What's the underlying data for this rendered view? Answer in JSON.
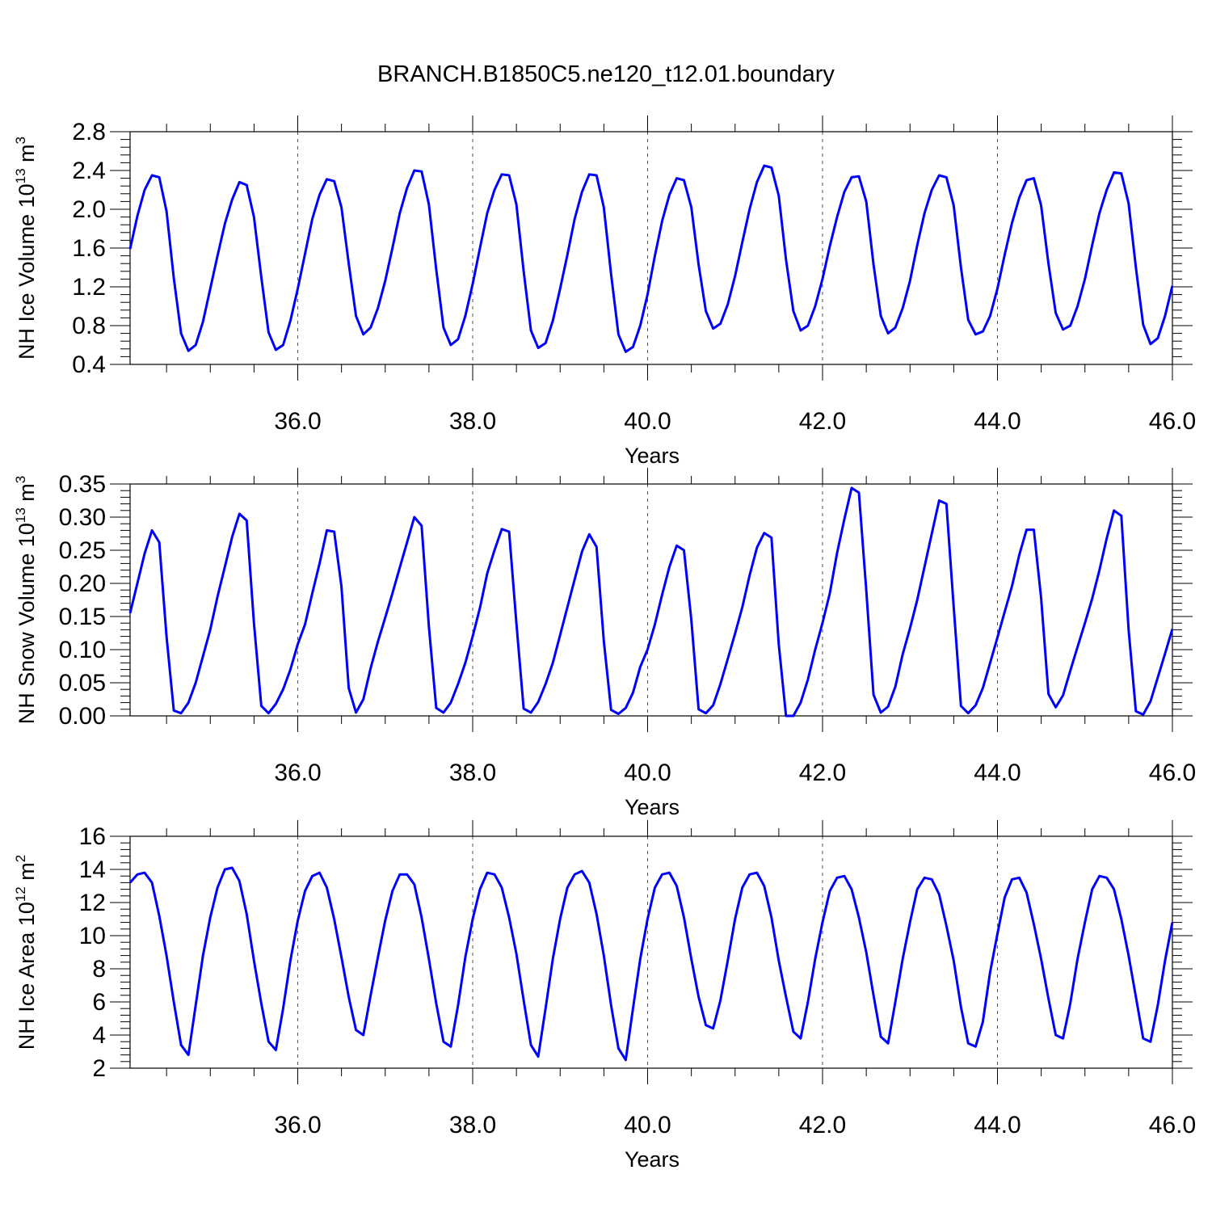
{
  "title": "BRANCH.B1850C5.ne120_t12.01.boundary",
  "chart_data": [
    {
      "type": "line",
      "xlabel": "Years",
      "ylabel": "NH Ice Volume 10^13 m^3",
      "ylabel_base": "NH Ice Volume 10",
      "ylabel_sup1": "13",
      "ylabel_mid": " m",
      "ylabel_sup2": "3",
      "xlim": [
        34.08,
        46.0
      ],
      "ylim": [
        0.4,
        2.8
      ],
      "xticks": [
        "36.0",
        "38.0",
        "40.0",
        "42.0",
        "44.0",
        "46.0"
      ],
      "yticks": [
        "0.4",
        "0.8",
        "1.2",
        "1.6",
        "2.0",
        "2.4",
        "2.8"
      ],
      "grid": "dashed vertical lines at major x ticks",
      "color": "#0000ff",
      "x_start": 34.083,
      "x_step": 0.08333,
      "values": [
        1.59,
        1.93,
        2.2,
        2.35,
        2.33,
        1.98,
        1.29,
        0.72,
        0.54,
        0.6,
        0.84,
        1.18,
        1.52,
        1.85,
        2.1,
        2.28,
        2.25,
        1.92,
        1.3,
        0.73,
        0.55,
        0.6,
        0.85,
        1.18,
        1.54,
        1.9,
        2.15,
        2.31,
        2.29,
        2.02,
        1.44,
        0.9,
        0.71,
        0.78,
        0.98,
        1.26,
        1.6,
        1.96,
        2.22,
        2.4,
        2.39,
        2.05,
        1.38,
        0.78,
        0.6,
        0.66,
        0.9,
        1.23,
        1.6,
        1.96,
        2.2,
        2.36,
        2.35,
        2.05,
        1.36,
        0.75,
        0.57,
        0.62,
        0.85,
        1.18,
        1.53,
        1.9,
        2.18,
        2.36,
        2.35,
        2.02,
        1.33,
        0.71,
        0.53,
        0.58,
        0.8,
        1.12,
        1.52,
        1.88,
        2.15,
        2.32,
        2.3,
        2.02,
        1.43,
        0.95,
        0.77,
        0.82,
        1.02,
        1.31,
        1.66,
        2.0,
        2.28,
        2.45,
        2.43,
        2.14,
        1.48,
        0.95,
        0.75,
        0.8,
        1.0,
        1.28,
        1.62,
        1.92,
        2.18,
        2.33,
        2.34,
        2.08,
        1.43,
        0.9,
        0.72,
        0.78,
        0.98,
        1.26,
        1.63,
        1.96,
        2.2,
        2.35,
        2.33,
        2.04,
        1.4,
        0.86,
        0.71,
        0.74,
        0.9,
        1.18,
        1.53,
        1.86,
        2.12,
        2.3,
        2.32,
        2.04,
        1.44,
        0.93,
        0.76,
        0.8,
        1.0,
        1.28,
        1.63,
        1.96,
        2.2,
        2.38,
        2.37,
        2.06,
        1.4,
        0.81,
        0.61,
        0.67,
        0.9,
        1.21
      ]
    },
    {
      "type": "line",
      "xlabel": "Years",
      "ylabel": "NH Snow Volume 10^13 m^3",
      "ylabel_base": "NH Snow Volume 10",
      "ylabel_sup1": "13",
      "ylabel_mid": " m",
      "ylabel_sup2": "3",
      "xlim": [
        34.08,
        46.0
      ],
      "ylim": [
        0.0,
        0.35
      ],
      "xticks": [
        "36.0",
        "38.0",
        "40.0",
        "42.0",
        "44.0",
        "46.0"
      ],
      "yticks": [
        "0.00",
        "0.05",
        "0.10",
        "0.15",
        "0.20",
        "0.25",
        "0.30",
        "0.35"
      ],
      "grid": "dashed vertical lines at major x ticks",
      "color": "#0000ff",
      "x_start": 34.083,
      "x_step": 0.08333,
      "values": [
        0.155,
        0.2,
        0.245,
        0.28,
        0.262,
        0.12,
        0.008,
        0.004,
        0.02,
        0.05,
        0.09,
        0.13,
        0.18,
        0.225,
        0.27,
        0.305,
        0.295,
        0.14,
        0.015,
        0.004,
        0.018,
        0.04,
        0.07,
        0.108,
        0.138,
        0.185,
        0.23,
        0.28,
        0.278,
        0.195,
        0.042,
        0.005,
        0.025,
        0.072,
        0.112,
        0.148,
        0.185,
        0.224,
        0.262,
        0.3,
        0.287,
        0.135,
        0.012,
        0.005,
        0.02,
        0.048,
        0.08,
        0.12,
        0.163,
        0.215,
        0.25,
        0.282,
        0.278,
        0.14,
        0.011,
        0.005,
        0.021,
        0.048,
        0.08,
        0.122,
        0.164,
        0.206,
        0.248,
        0.274,
        0.255,
        0.113,
        0.009,
        0.003,
        0.012,
        0.035,
        0.074,
        0.1,
        0.138,
        0.183,
        0.225,
        0.257,
        0.25,
        0.145,
        0.01,
        0.004,
        0.016,
        0.048,
        0.086,
        0.124,
        0.164,
        0.212,
        0.254,
        0.276,
        0.269,
        0.108,
        0.0,
        0.0,
        0.02,
        0.055,
        0.1,
        0.14,
        0.185,
        0.246,
        0.297,
        0.344,
        0.337,
        0.19,
        0.032,
        0.005,
        0.014,
        0.044,
        0.093,
        0.132,
        0.175,
        0.225,
        0.275,
        0.325,
        0.32,
        0.165,
        0.015,
        0.004,
        0.016,
        0.042,
        0.08,
        0.118,
        0.157,
        0.196,
        0.243,
        0.281,
        0.281,
        0.178,
        0.033,
        0.013,
        0.031,
        0.068,
        0.104,
        0.14,
        0.177,
        0.22,
        0.268,
        0.31,
        0.302,
        0.13,
        0.007,
        0.002,
        0.022,
        0.058,
        0.094,
        0.131
      ]
    },
    {
      "type": "line",
      "xlabel": "Years",
      "ylabel": "NH Ice Area 10^12 m^2",
      "ylabel_base": "NH Ice Area 10",
      "ylabel_sup1": "12",
      "ylabel_mid": " m",
      "ylabel_sup2": "2",
      "xlim": [
        34.08,
        46.0
      ],
      "ylim": [
        2,
        16
      ],
      "xticks": [
        "36.0",
        "38.0",
        "40.0",
        "42.0",
        "44.0",
        "46.0"
      ],
      "yticks": [
        "2",
        "4",
        "6",
        "8",
        "10",
        "12",
        "14",
        "16"
      ],
      "grid": "dashed vertical lines at major x ticks",
      "color": "#0000ff",
      "x_start": 34.083,
      "x_step": 0.08333,
      "values": [
        13.2,
        13.7,
        13.8,
        13.2,
        11.2,
        8.8,
        6.0,
        3.4,
        2.8,
        5.8,
        8.8,
        11.1,
        12.9,
        14.0,
        14.1,
        13.3,
        11.3,
        8.5,
        5.9,
        3.6,
        3.1,
        5.6,
        8.5,
        10.9,
        12.7,
        13.6,
        13.8,
        12.9,
        11.0,
        8.7,
        6.3,
        4.3,
        4.0,
        6.4,
        8.7,
        10.9,
        12.7,
        13.7,
        13.7,
        13.1,
        11.1,
        8.6,
        5.9,
        3.6,
        3.3,
        5.8,
        8.7,
        11.0,
        12.8,
        13.8,
        13.7,
        12.9,
        11.1,
        8.9,
        6.1,
        3.4,
        2.7,
        5.6,
        8.6,
        11.0,
        12.9,
        13.7,
        13.9,
        13.2,
        11.3,
        8.8,
        5.8,
        3.2,
        2.5,
        5.6,
        8.6,
        11.0,
        12.9,
        13.7,
        13.8,
        13.0,
        11.1,
        8.6,
        6.3,
        4.6,
        4.4,
        6.1,
        8.5,
        11.0,
        12.9,
        13.7,
        13.8,
        13.0,
        11.1,
        8.5,
        6.3,
        4.2,
        3.8,
        6.0,
        8.6,
        10.8,
        12.7,
        13.5,
        13.6,
        12.8,
        11.1,
        9.0,
        6.4,
        3.9,
        3.5,
        6.0,
        8.6,
        10.8,
        12.8,
        13.5,
        13.4,
        12.5,
        10.6,
        8.5,
        5.7,
        3.5,
        3.3,
        4.8,
        7.8,
        10.1,
        12.3,
        13.4,
        13.5,
        12.6,
        10.7,
        8.6,
        6.2,
        4.0,
        3.8,
        5.9,
        8.6,
        10.8,
        12.8,
        13.6,
        13.5,
        12.8,
        11.0,
        8.8,
        6.3,
        3.8,
        3.6,
        5.8,
        8.5,
        10.8
      ]
    }
  ]
}
